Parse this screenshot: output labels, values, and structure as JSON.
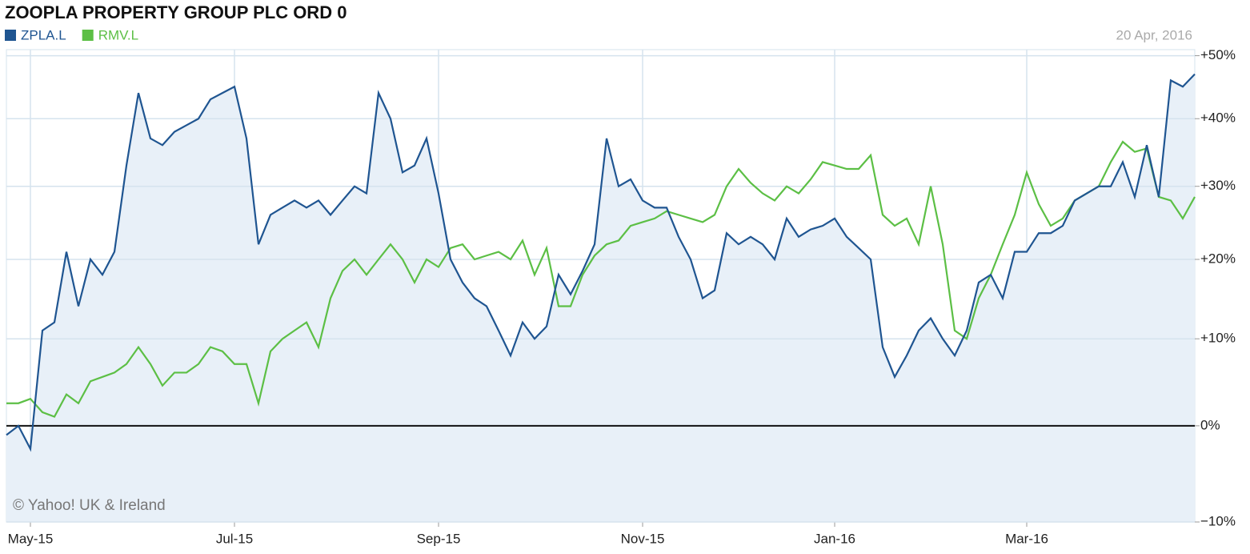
{
  "chart_data": {
    "type": "line",
    "title": "ZOOPLA PROPERTY GROUP PLC ORD 0",
    "date_label": "20 Apr, 2016",
    "credit": "© Yahoo! UK & Ireland",
    "categories": [
      null,
      null,
      "May-15",
      null,
      null,
      null,
      null,
      null,
      null,
      null,
      null,
      null,
      null,
      null,
      null,
      null,
      null,
      null,
      null,
      "Jul-15",
      null,
      null,
      null,
      null,
      null,
      null,
      null,
      null,
      null,
      null,
      null,
      null,
      null,
      null,
      null,
      null,
      "Sep-15",
      null,
      null,
      null,
      null,
      null,
      null,
      null,
      null,
      null,
      null,
      null,
      null,
      null,
      null,
      null,
      null,
      "Nov-15",
      null,
      null,
      null,
      null,
      null,
      null,
      null,
      null,
      null,
      null,
      null,
      null,
      null,
      null,
      null,
      "Jan-16",
      null,
      null,
      null,
      null,
      null,
      null,
      null,
      null,
      null,
      null,
      null,
      null,
      null,
      null,
      null,
      "Mar-16",
      null,
      null,
      null,
      null,
      null,
      null,
      null,
      null,
      null,
      null,
      null,
      null,
      null,
      null
    ],
    "series": [
      {
        "name": "ZPLA.L",
        "color": "#1f5591",
        "fill": "#e8f0f8",
        "values": [
          -1,
          0,
          -2.5,
          11,
          12,
          21,
          14,
          20,
          18,
          21,
          33,
          44,
          37,
          36,
          38,
          39,
          40,
          43,
          44,
          45,
          37,
          22,
          26,
          27,
          28,
          27,
          28,
          26,
          28,
          30,
          29,
          44,
          40,
          32,
          33,
          37,
          29,
          20,
          17,
          15,
          14,
          11,
          8,
          12,
          10,
          11.5,
          18,
          15.5,
          18.5,
          22,
          37,
          30,
          31,
          28,
          27,
          27,
          23,
          20,
          15,
          16,
          23.5,
          22,
          23,
          22,
          20,
          25.5,
          23,
          24,
          24.5,
          25.5,
          23,
          21.5,
          20,
          9,
          5.5,
          8,
          11,
          12.5,
          10,
          8,
          11,
          17,
          18,
          15,
          21,
          21,
          23.5,
          23.5,
          24.5,
          28,
          29,
          30,
          30,
          33.5,
          28.5,
          36,
          28.5,
          46,
          45,
          47
        ]
      },
      {
        "name": "RMV.L",
        "color": "#5cbf45",
        "values": [
          2.5,
          2.5,
          3,
          1.5,
          1,
          3.5,
          2.5,
          5,
          5.5,
          6,
          7,
          9,
          7,
          4.5,
          6,
          6,
          7,
          9,
          8.5,
          7,
          7,
          2.5,
          8.5,
          10,
          11,
          12,
          9,
          15,
          18.5,
          20,
          18,
          20,
          22,
          20,
          17,
          20,
          19,
          21.5,
          22,
          20,
          20.5,
          21,
          20,
          22.5,
          18,
          21.5,
          14,
          14,
          18,
          20.5,
          22,
          22.5,
          24.5,
          25,
          25.5,
          26.5,
          26,
          25.5,
          25,
          26,
          30,
          32.5,
          30.5,
          29,
          28,
          30,
          29,
          31,
          33.5,
          33,
          32.5,
          32.5,
          34.5,
          26,
          24.5,
          25.5,
          22,
          30,
          22,
          11,
          10,
          15,
          18,
          22,
          26,
          32,
          27.5,
          24.5,
          25.5,
          28,
          29,
          30,
          33.5,
          36.5,
          35,
          35.5,
          28.5,
          28,
          25.5,
          28.5
        ]
      }
    ],
    "ylim": [
      -10,
      51
    ],
    "yscale": "log",
    "yticks": [
      {
        "value": -10,
        "label": "−10%"
      },
      {
        "value": 0,
        "label": "0%"
      },
      {
        "value": 10,
        "label": "+10%"
      },
      {
        "value": 20,
        "label": "+20%"
      },
      {
        "value": 30,
        "label": "+30%"
      },
      {
        "value": 40,
        "label": "+40%"
      },
      {
        "value": 50,
        "label": "+50%"
      }
    ],
    "grid": true,
    "legend": "top-left"
  }
}
